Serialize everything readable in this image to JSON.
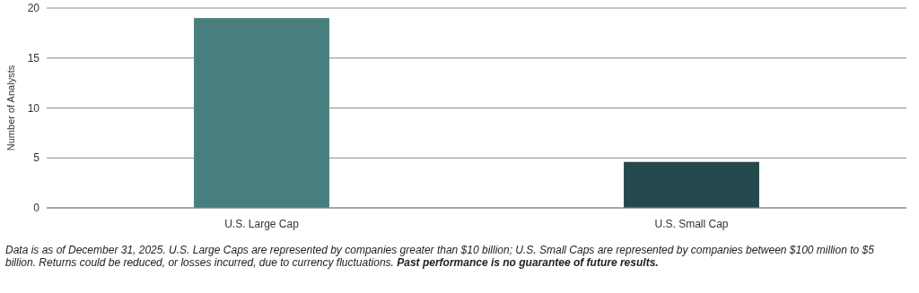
{
  "chart_data": {
    "type": "bar",
    "ylabel": "Number of Analysts",
    "categories": [
      "U.S. Large Cap",
      "U.S. Small Cap"
    ],
    "colors": [
      "#487f7e",
      "#24494c"
    ],
    "values": [
      19,
      4.6
    ],
    "ylim": [
      0,
      20
    ],
    "yticks": [
      0,
      5,
      10,
      15,
      20
    ],
    "grid": "y",
    "annotations": [
      "Data is as of December 31, 2025. U.S. Large Caps are represented by companies greater than $10 billion; U.S. Small Caps are represented by companies between $100 million to $5 billion. Returns could be reduced, or losses incurred, due to currency fluctuations.",
      "Past performance is no guarantee of future results."
    ]
  }
}
